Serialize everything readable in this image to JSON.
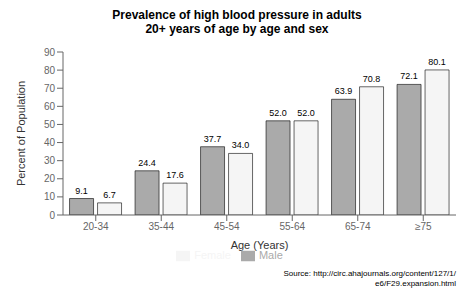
{
  "chart_data": {
    "type": "bar",
    "title": "Prevalence of high blood pressure in adults",
    "subtitle": "20+ years of age by age and sex",
    "xlabel": "Age (Years)",
    "ylabel": "Percent of Population",
    "categories": [
      "20-34",
      "35-44",
      "45-54",
      "55-64",
      "65-74",
      "≥75"
    ],
    "series": [
      {
        "name": "Male",
        "color": "#aaaaaa",
        "values": [
          9.1,
          24.4,
          37.7,
          52.0,
          63.9,
          72.1
        ],
        "value_labels": [
          "9.1",
          "24.4",
          "37.7",
          "52.0",
          "63.9",
          "72.1"
        ]
      },
      {
        "name": "Female",
        "color": "#f5f5f5",
        "values": [
          6.7,
          17.6,
          34.0,
          52.0,
          70.8,
          80.1
        ],
        "value_labels": [
          "6.7",
          "17.6",
          "34.0",
          "52.0",
          "70.8",
          "80.1"
        ]
      }
    ],
    "ylim": [
      0,
      90
    ],
    "yticks": [
      0,
      10,
      20,
      30,
      40,
      50,
      60,
      70,
      80,
      90
    ],
    "grid": false,
    "legend": "bottom",
    "data_labels": true,
    "annotations": [
      "Source: http://circ.ahajournals.org/content/127/1/\ne6/F29.expansion.html"
    ]
  }
}
